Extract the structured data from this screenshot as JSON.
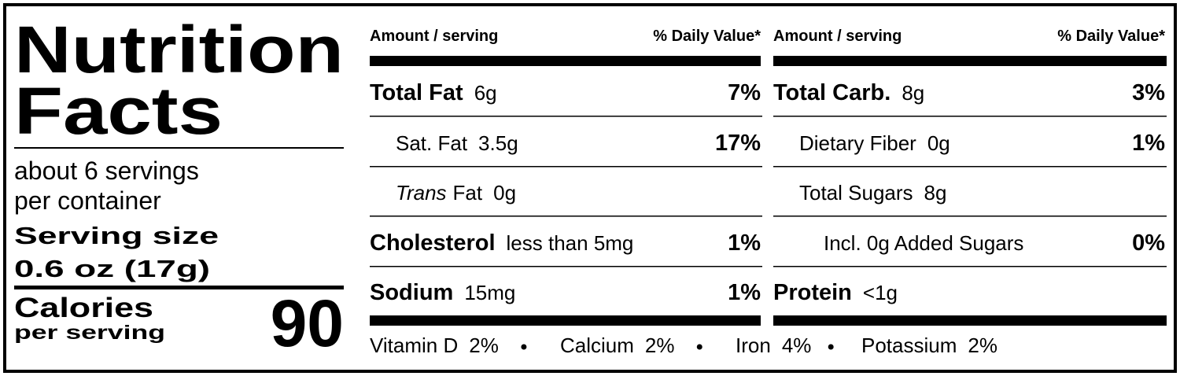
{
  "header": {
    "title_line1": "Nutrition",
    "title_line2": "Facts"
  },
  "servings": {
    "per_container_line1": "about 6 servings",
    "per_container_line2": "per container",
    "serving_size_label": "Serving size",
    "serving_size_value": "0.6 oz (17g)"
  },
  "calories": {
    "label": "Calories",
    "sublabel": "per serving",
    "value": 90
  },
  "columns": [
    {
      "amount_header": "Amount / serving",
      "dv_header": "% Daily Value*",
      "rows": [
        {
          "name": "Total Fat",
          "amount": "6g",
          "dv": "7%"
        },
        {
          "name": "Sat. Fat",
          "amount": "3.5g",
          "dv": "17%"
        },
        {
          "prefix": "Trans",
          "name": "Fat",
          "amount": "0g"
        },
        {
          "name": "Cholesterol",
          "amount": "less than 5mg",
          "dv": "1%"
        },
        {
          "name": "Sodium",
          "amount": "15mg",
          "dv": "1%"
        }
      ]
    },
    {
      "amount_header": "Amount / serving",
      "dv_header": "% Daily Value*",
      "rows": [
        {
          "name": "Total Carb.",
          "amount": "8g",
          "dv": "3%"
        },
        {
          "name": "Dietary Fiber",
          "amount": "0g",
          "dv": "1%"
        },
        {
          "name": "Total Sugars",
          "amount": "8g"
        },
        {
          "name": "Incl. 0g Added Sugars",
          "dv": "0%"
        },
        {
          "name": "Protein",
          "amount": "<1g"
        }
      ]
    }
  ],
  "vitamins": [
    {
      "name": "Vitamin D",
      "dv": "2%"
    },
    {
      "name": "Calcium",
      "dv": "2%"
    },
    {
      "name": "Iron",
      "dv": "4%"
    },
    {
      "name": "Potassium",
      "dv": "2%"
    }
  ]
}
